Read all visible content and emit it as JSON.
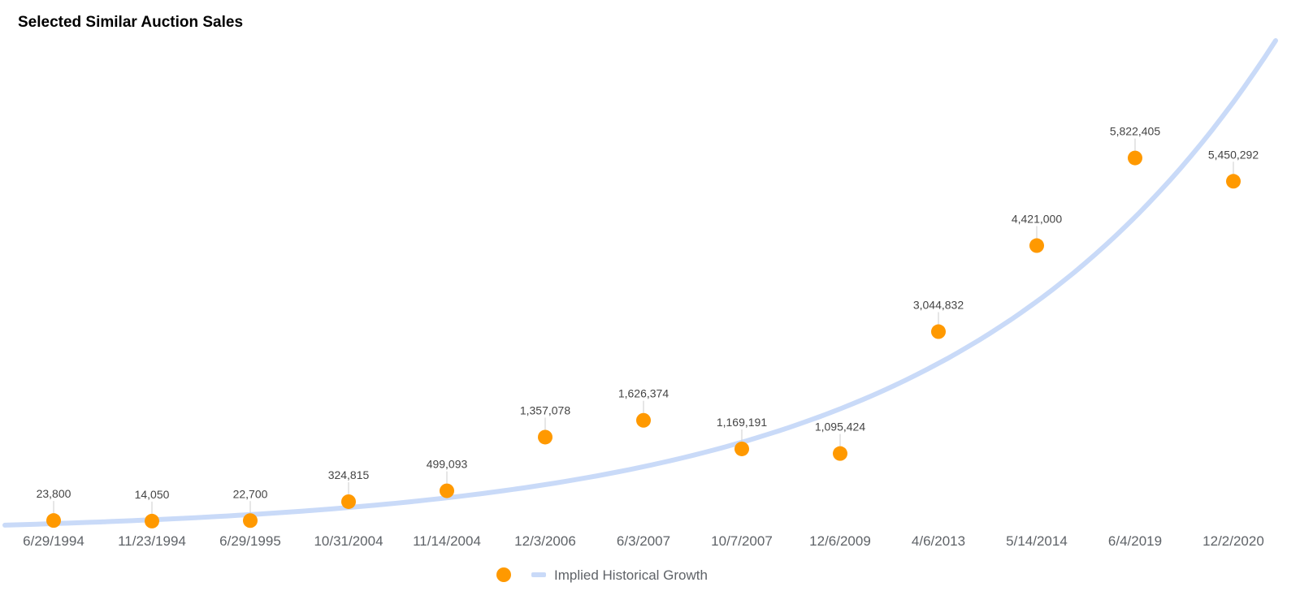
{
  "chart_data": {
    "type": "scatter",
    "title": "Selected Similar Auction Sales",
    "xlabel": "",
    "ylabel": "",
    "categories": [
      "6/29/1994",
      "11/23/1994",
      "6/29/1995",
      "10/31/2004",
      "11/14/2004",
      "12/3/2006",
      "6/3/2007",
      "10/7/2007",
      "12/6/2009",
      "4/6/2013",
      "5/14/2014",
      "6/4/2019",
      "12/2/2020"
    ],
    "series": [
      {
        "name": "",
        "color": "#ff9900",
        "values": [
          23800,
          14050,
          22700,
          324815,
          499093,
          1357078,
          1626374,
          1169191,
          1095424,
          3044832,
          4421000,
          5822405,
          5450292
        ],
        "labels": [
          "23,800",
          "14,050",
          "22,700",
          "324,815",
          "499,093",
          "1,357,078",
          "1,626,374",
          "1,169,191",
          "1,095,424",
          "3,044,832",
          "4,421,000",
          "5,822,405",
          "5,450,292"
        ]
      },
      {
        "name": "Implied Historical Growth",
        "type": "line",
        "color": "#c9daf8",
        "trend": {
          "kind": "exponential",
          "y_at_start": -50000,
          "y_at_end": 7700000
        }
      }
    ],
    "ylim": [
      0,
      7700000
    ],
    "grid": false,
    "legend_position": "bottom"
  }
}
